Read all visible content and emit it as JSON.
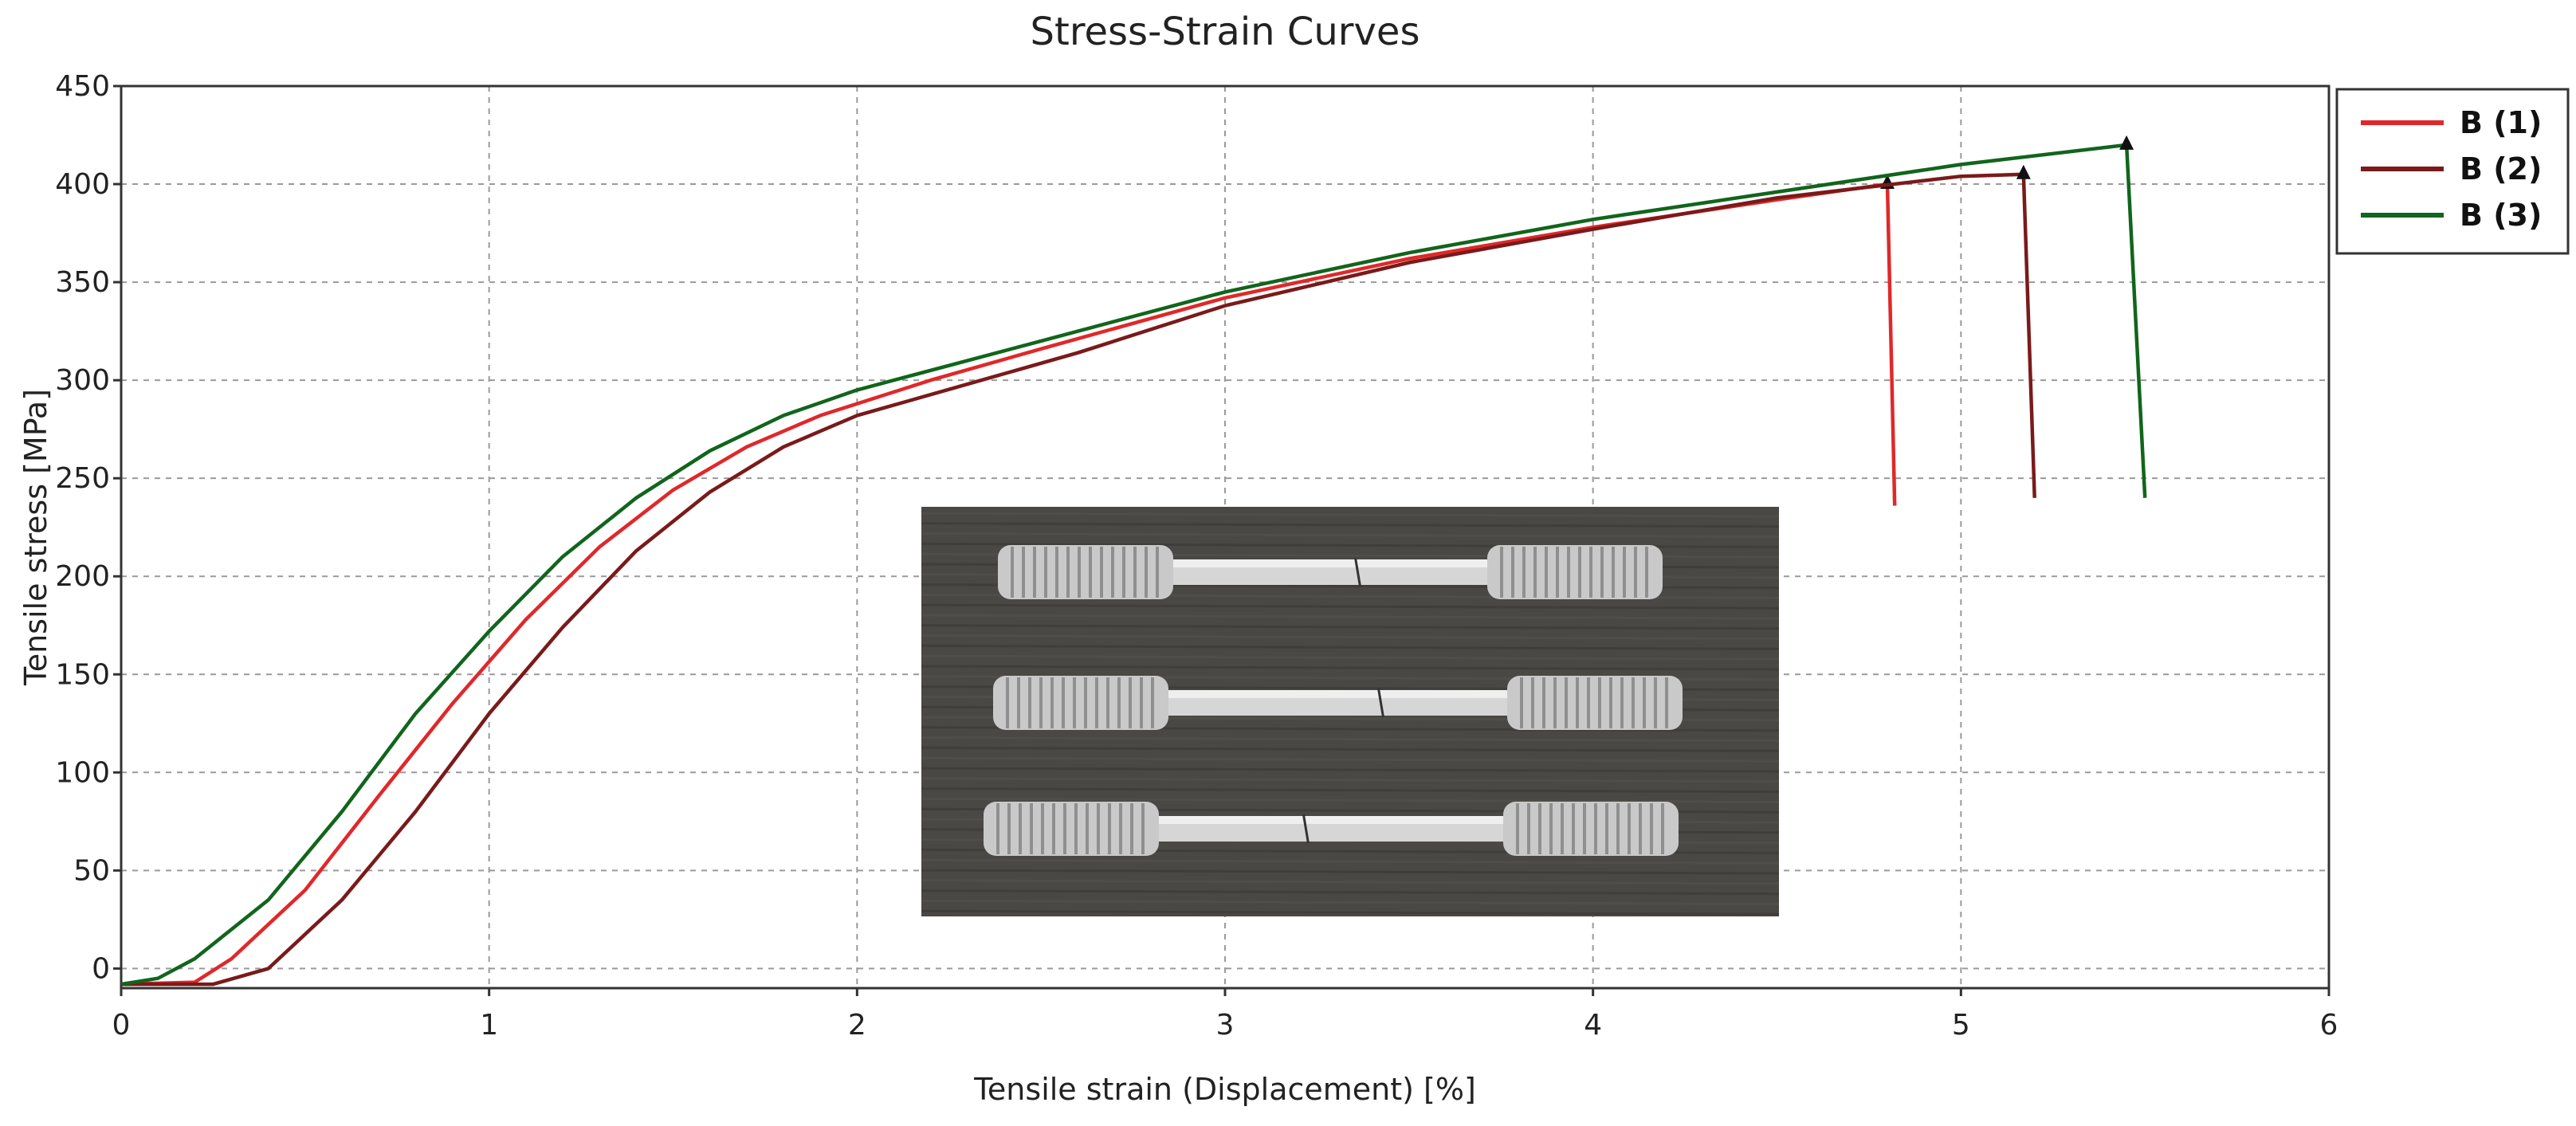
{
  "chart_data": {
    "type": "line",
    "title": "Stress-Strain Curves",
    "xlabel": "Tensile strain (Displacement) [%]",
    "ylabel": "Tensile stress [MPa]",
    "xlim": [
      0,
      6
    ],
    "ylim": [
      -10,
      450
    ],
    "x_ticks": [
      0,
      1,
      2,
      3,
      4,
      5,
      6
    ],
    "y_ticks": [
      0,
      50,
      100,
      150,
      200,
      250,
      300,
      350,
      400,
      450
    ],
    "grid": true,
    "legend_position": "outside-top-right",
    "series": [
      {
        "name": "B (1)",
        "color": "#e0282a",
        "points": [
          [
            0,
            -8
          ],
          [
            0.2,
            -7
          ],
          [
            0.3,
            5
          ],
          [
            0.5,
            40
          ],
          [
            0.7,
            88
          ],
          [
            0.9,
            135
          ],
          [
            1.1,
            178
          ],
          [
            1.3,
            215
          ],
          [
            1.5,
            244
          ],
          [
            1.7,
            266
          ],
          [
            1.9,
            282
          ],
          [
            2.2,
            300
          ],
          [
            2.5,
            316
          ],
          [
            3.0,
            342
          ],
          [
            3.5,
            362
          ],
          [
            4.0,
            378
          ],
          [
            4.5,
            392
          ],
          [
            4.8,
            400
          ],
          [
            4.82,
            236
          ]
        ],
        "fracture_marker": [
          4.8,
          400
        ]
      },
      {
        "name": "B (2)",
        "color": "#7a1a1a",
        "points": [
          [
            0,
            -8
          ],
          [
            0.25,
            -8
          ],
          [
            0.4,
            0
          ],
          [
            0.6,
            35
          ],
          [
            0.8,
            80
          ],
          [
            1.0,
            130
          ],
          [
            1.2,
            174
          ],
          [
            1.4,
            213
          ],
          [
            1.6,
            243
          ],
          [
            1.8,
            266
          ],
          [
            2.0,
            282
          ],
          [
            2.3,
            298
          ],
          [
            2.6,
            314
          ],
          [
            3.0,
            338
          ],
          [
            3.5,
            360
          ],
          [
            4.0,
            377
          ],
          [
            4.5,
            393
          ],
          [
            5.0,
            404
          ],
          [
            5.17,
            405
          ],
          [
            5.2,
            240
          ]
        ],
        "fracture_marker": [
          5.17,
          405
        ]
      },
      {
        "name": "B (3)",
        "color": "#11651c",
        "points": [
          [
            0,
            -8
          ],
          [
            0.1,
            -5
          ],
          [
            0.2,
            5
          ],
          [
            0.4,
            35
          ],
          [
            0.6,
            80
          ],
          [
            0.8,
            130
          ],
          [
            1.0,
            172
          ],
          [
            1.2,
            210
          ],
          [
            1.4,
            240
          ],
          [
            1.6,
            264
          ],
          [
            1.8,
            282
          ],
          [
            2.0,
            295
          ],
          [
            2.5,
            320
          ],
          [
            3.0,
            345
          ],
          [
            3.5,
            365
          ],
          [
            4.0,
            382
          ],
          [
            4.5,
            396
          ],
          [
            5.0,
            410
          ],
          [
            5.45,
            420
          ],
          [
            5.5,
            240
          ]
        ],
        "fracture_marker": [
          5.45,
          420
        ]
      }
    ]
  },
  "inset_photo": {
    "description_icon": "tensile-specimen-photo",
    "background_color": "#4a4845"
  }
}
